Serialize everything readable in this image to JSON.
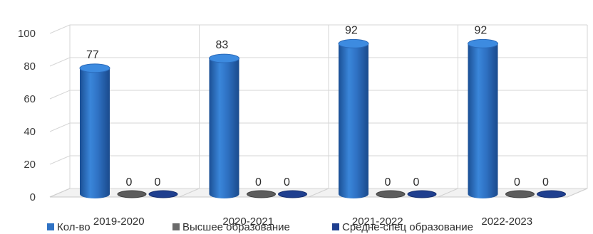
{
  "chart_data": {
    "type": "bar",
    "title": "",
    "xlabel": "",
    "ylabel": "",
    "categories": [
      "2019-2020",
      "2020-2021",
      "2021-2022",
      "2022-2023"
    ],
    "ylim": [
      0,
      100
    ],
    "yticks": [
      0,
      20,
      40,
      60,
      80,
      100
    ],
    "series": [
      {
        "name": "Кол-во",
        "values": [
          77,
          83,
          92,
          92
        ],
        "color": "#2f72c4"
      },
      {
        "name": "Высшее образование",
        "values": [
          0,
          0,
          0,
          0
        ],
        "color": "#6b6b6b"
      },
      {
        "name": "Средне-спец образование",
        "values": [
          0,
          0,
          0,
          0
        ],
        "color": "#1f3f8f"
      }
    ],
    "data_labels": true,
    "grid": true,
    "legend_position": "bottom",
    "style": "3d-cylinder"
  }
}
